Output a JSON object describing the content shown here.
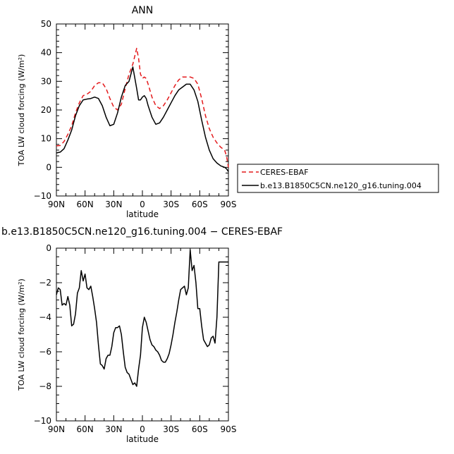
{
  "chart_data": [
    {
      "type": "line",
      "title": "ANN",
      "xlabel": "latitude",
      "ylabel": "TOA LW cloud forcing (W/m²)",
      "xlim": [
        90,
        -90
      ],
      "ylim": [
        -10,
        50
      ],
      "x_tick_labels": [
        "90N",
        "60N",
        "30N",
        "0",
        "30S",
        "60S",
        "90S"
      ],
      "y_tick_labels": [
        "−10",
        "0",
        "10",
        "20",
        "30",
        "40",
        "50"
      ],
      "grid": false,
      "legend_position": "outside-right",
      "series": [
        {
          "name": "CERES-EBAF",
          "color": "#e41a1c",
          "style": "dashed",
          "x": [
            90,
            86,
            82,
            78,
            74,
            70,
            66,
            62,
            58,
            54,
            50,
            46,
            42,
            38,
            34,
            30,
            26,
            22,
            18,
            14,
            10,
            6,
            4,
            2,
            0,
            -2,
            -4,
            -6,
            -10,
            -14,
            -18,
            -22,
            -26,
            -30,
            -34,
            -38,
            -42,
            -46,
            -50,
            -54,
            -58,
            -62,
            -66,
            -70,
            -74,
            -78,
            -82,
            -86,
            -88,
            -90
          ],
          "values": [
            7.5,
            7.6,
            9.0,
            11.5,
            14.5,
            19.0,
            22.5,
            25.0,
            25.5,
            26.5,
            28.5,
            29.5,
            29.5,
            27.5,
            24.0,
            21.0,
            20.0,
            22.0,
            27.5,
            32.5,
            36.0,
            41.5,
            38.0,
            32.5,
            31.0,
            31.5,
            31.0,
            29.0,
            24.5,
            21.5,
            20.5,
            21.5,
            23.5,
            26.0,
            28.5,
            30.5,
            31.5,
            31.5,
            31.5,
            31.0,
            29.0,
            24.0,
            18.0,
            13.5,
            10.5,
            8.5,
            7.0,
            6.0,
            4.0,
            0.0
          ]
        },
        {
          "name": "b.e13.B1850C5CN.ne120_g16.tuning.004",
          "color": "#000000",
          "style": "solid",
          "x": [
            90,
            86,
            82,
            78,
            74,
            70,
            66,
            62,
            58,
            54,
            50,
            46,
            42,
            38,
            34,
            30,
            26,
            22,
            18,
            14,
            10,
            6,
            4,
            2,
            0,
            -2,
            -4,
            -6,
            -10,
            -14,
            -18,
            -22,
            -26,
            -30,
            -34,
            -38,
            -42,
            -46,
            -50,
            -54,
            -58,
            -62,
            -66,
            -70,
            -74,
            -78,
            -82,
            -86,
            -88,
            -90
          ],
          "values": [
            5.0,
            5.3,
            6.5,
            9.5,
            13.0,
            18.0,
            21.5,
            23.5,
            23.8,
            24.0,
            24.5,
            24.0,
            21.5,
            17.5,
            14.5,
            15.0,
            19.0,
            24.5,
            28.5,
            30.0,
            35.0,
            27.5,
            23.5,
            23.5,
            24.5,
            25.0,
            24.0,
            21.5,
            17.5,
            15.0,
            15.5,
            17.5,
            20.0,
            22.5,
            25.0,
            27.0,
            28.0,
            29.0,
            29.0,
            27.0,
            23.0,
            16.5,
            10.5,
            6.0,
            3.0,
            1.5,
            0.5,
            0.0,
            -0.5,
            -1.5
          ]
        }
      ]
    },
    {
      "type": "line",
      "title": "b.e13.B1850C5CN.ne120_g16.tuning.004 − CERES-EBAF",
      "xlabel": "latitude",
      "ylabel": "TOA LW cloud forcing (W/m²)",
      "xlim": [
        90,
        -90
      ],
      "ylim": [
        -10,
        0
      ],
      "x_tick_labels": [
        "90N",
        "60N",
        "30N",
        "0",
        "30S",
        "60S",
        "90S"
      ],
      "y_tick_labels": [
        "−10",
        "−8",
        "−6",
        "−4",
        "−2",
        "0"
      ],
      "grid": false,
      "series": [
        {
          "color": "#000000",
          "style": "solid",
          "x": [
            90,
            88,
            86,
            84,
            82,
            80,
            78,
            76,
            74,
            72,
            70,
            68,
            66,
            64,
            62,
            60,
            58,
            56,
            54,
            52,
            50,
            48,
            46,
            44,
            42,
            40,
            38,
            36,
            34,
            32,
            30,
            28,
            26,
            24,
            22,
            20,
            18,
            16,
            14,
            12,
            10,
            8,
            6,
            4,
            2,
            0,
            -2,
            -4,
            -6,
            -8,
            -10,
            -12,
            -14,
            -16,
            -18,
            -20,
            -22,
            -24,
            -26,
            -28,
            -30,
            -32,
            -34,
            -36,
            -38,
            -40,
            -42,
            -44,
            -46,
            -48,
            -50,
            -52,
            -54,
            -56,
            -58,
            -60,
            -62,
            -64,
            -66,
            -68,
            -70,
            -72,
            -74,
            -76,
            -78,
            -80,
            -82,
            -84,
            -86,
            -88,
            -90
          ],
          "values": [
            -2.7,
            -2.3,
            -2.4,
            -3.3,
            -3.2,
            -3.3,
            -2.8,
            -3.3,
            -4.5,
            -4.4,
            -3.8,
            -2.6,
            -2.3,
            -1.3,
            -1.9,
            -1.5,
            -2.3,
            -2.4,
            -2.2,
            -2.8,
            -3.5,
            -4.3,
            -5.6,
            -6.7,
            -6.8,
            -7.0,
            -6.4,
            -6.2,
            -6.2,
            -5.7,
            -4.9,
            -4.6,
            -4.6,
            -4.5,
            -5.0,
            -6.0,
            -6.9,
            -7.2,
            -7.3,
            -7.6,
            -7.9,
            -7.8,
            -8.0,
            -7.0,
            -6.2,
            -4.6,
            -4.0,
            -4.3,
            -4.8,
            -5.3,
            -5.6,
            -5.7,
            -5.9,
            -6.0,
            -6.2,
            -6.5,
            -6.6,
            -6.6,
            -6.4,
            -6.1,
            -5.6,
            -5.0,
            -4.3,
            -3.7,
            -3.0,
            -2.4,
            -2.3,
            -2.2,
            -2.7,
            -2.3,
            -0.1,
            -1.3,
            -1.0,
            -2.0,
            -3.5,
            -3.5,
            -4.5,
            -5.3,
            -5.5,
            -5.7,
            -5.6,
            -5.2,
            -5.1,
            -5.5,
            -4.0,
            -0.8,
            -0.8,
            -0.8,
            -0.8,
            -0.8,
            -0.8
          ]
        }
      ]
    }
  ]
}
